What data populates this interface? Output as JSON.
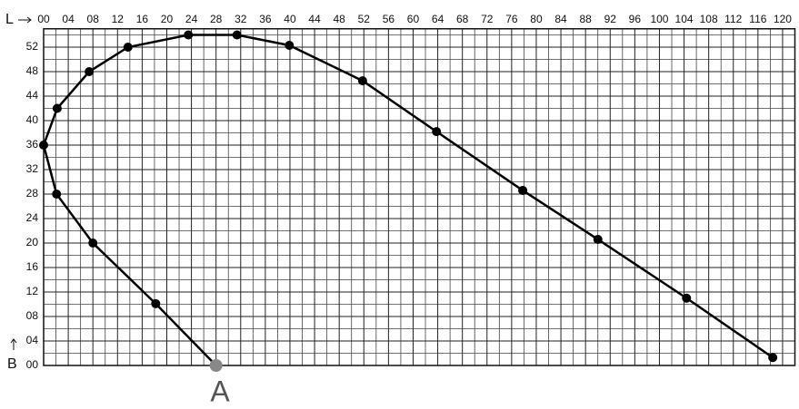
{
  "chart_data": {
    "type": "line",
    "x_label": "L",
    "y_label": "B",
    "annotation": "A",
    "x": [
      28,
      18.2,
      8,
      2.1,
      0,
      2.2,
      7.4,
      13.7,
      23.5,
      31.4,
      39.9,
      51.8,
      63.8,
      77.8,
      90,
      104.4,
      118.4
    ],
    "series": [
      {
        "color": "#000000",
        "values": [
          0,
          10.1,
          20,
          28,
          36,
          42,
          48,
          52,
          54,
          54,
          52.3,
          46.5,
          38.2,
          28.6,
          20.6,
          11,
          1.3
        ]
      }
    ],
    "xlim": [
      0,
      122
    ],
    "ylim": [
      0,
      55
    ],
    "xticks": [
      {
        "value": 0,
        "label": "00"
      },
      {
        "value": 4,
        "label": "04"
      },
      {
        "value": 8,
        "label": "08"
      },
      12,
      16,
      20,
      24,
      28,
      32,
      36,
      40,
      44,
      48,
      52,
      56,
      60,
      64,
      68,
      72,
      76,
      80,
      84,
      88,
      92,
      96,
      100,
      104,
      108,
      112,
      116,
      120
    ],
    "yticks": [
      {
        "value": 0,
        "label": "00"
      },
      {
        "value": 4,
        "label": "04"
      },
      {
        "value": 8,
        "label": "08"
      },
      12,
      16,
      20,
      24,
      28,
      32,
      36,
      40,
      44,
      48,
      52
    ],
    "grid": true
  }
}
